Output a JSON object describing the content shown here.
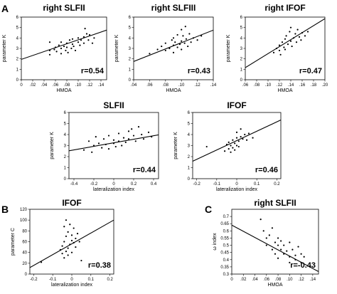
{
  "panel_letters": {
    "A": "A",
    "B": "B",
    "C": "C"
  },
  "chart_data": [
    {
      "id": "a1",
      "type": "scatter",
      "title": "right SLFII",
      "xlabel": "HMOA",
      "ylabel": "parameter K",
      "xlim": [
        0,
        0.15
      ],
      "ylim": [
        0,
        6
      ],
      "xticks": [
        0,
        0.02,
        0.04,
        0.06,
        0.08,
        0.1,
        0.12,
        0.14
      ],
      "xtick_labels": [
        "0",
        ".02",
        ".04",
        ".06",
        ".08",
        ".10",
        ".12",
        ".14"
      ],
      "yticks": [
        0,
        1,
        2,
        3,
        4,
        5,
        6
      ],
      "ytick_labels": [
        "0",
        "1",
        "2",
        "3",
        "4",
        "5",
        "6"
      ],
      "fit": {
        "intercept": 1.95,
        "slope": 18.7
      },
      "annotation": "r=0.54",
      "points": [
        [
          0.05,
          2.4
        ],
        [
          0.05,
          2.8
        ],
        [
          0.05,
          3.6
        ],
        [
          0.058,
          2.9
        ],
        [
          0.06,
          3.1
        ],
        [
          0.062,
          2.7
        ],
        [
          0.066,
          3.3
        ],
        [
          0.07,
          3.0
        ],
        [
          0.07,
          2.5
        ],
        [
          0.07,
          3.6
        ],
        [
          0.075,
          3.2
        ],
        [
          0.078,
          2.8
        ],
        [
          0.08,
          3.5
        ],
        [
          0.08,
          3.1
        ],
        [
          0.082,
          2.6
        ],
        [
          0.085,
          3.8
        ],
        [
          0.088,
          3.0
        ],
        [
          0.09,
          3.4
        ],
        [
          0.09,
          3.9
        ],
        [
          0.092,
          3.2
        ],
        [
          0.095,
          2.8
        ],
        [
          0.1,
          3.6
        ],
        [
          0.1,
          4.0
        ],
        [
          0.103,
          3.3
        ],
        [
          0.105,
          3.8
        ],
        [
          0.11,
          4.1
        ],
        [
          0.11,
          3.5
        ],
        [
          0.112,
          4.9
        ],
        [
          0.115,
          4.4
        ],
        [
          0.118,
          3.8
        ],
        [
          0.12,
          4.3
        ],
        [
          0.125,
          3.5
        ],
        [
          0.128,
          4.0
        ]
      ]
    },
    {
      "id": "a2",
      "type": "scatter",
      "title": "right SLFIII",
      "xlabel": "HMOA",
      "ylabel": "parameter K",
      "xlim": [
        0.04,
        0.14
      ],
      "ylim": [
        0,
        6
      ],
      "xticks": [
        0.04,
        0.06,
        0.08,
        0.1,
        0.12,
        0.14
      ],
      "xtick_labels": [
        ".04",
        ".06",
        ".08",
        ".10",
        ".12",
        ".14"
      ],
      "yticks": [
        0,
        1,
        2,
        3,
        4,
        5,
        6
      ],
      "ytick_labels": [
        "0",
        "1",
        "2",
        "3",
        "4",
        "5",
        "6"
      ],
      "fit": {
        "intercept": 0.55,
        "slope": 30
      },
      "annotation": "r=0.43",
      "points": [
        [
          0.06,
          2.5
        ],
        [
          0.07,
          2.9
        ],
        [
          0.075,
          3.2
        ],
        [
          0.08,
          2.8
        ],
        [
          0.08,
          3.5
        ],
        [
          0.085,
          3.0
        ],
        [
          0.088,
          3.8
        ],
        [
          0.09,
          2.6
        ],
        [
          0.09,
          3.3
        ],
        [
          0.09,
          4.0
        ],
        [
          0.092,
          3.6
        ],
        [
          0.095,
          3.1
        ],
        [
          0.095,
          4.3
        ],
        [
          0.098,
          3.4
        ],
        [
          0.1,
          2.9
        ],
        [
          0.1,
          3.7
        ],
        [
          0.1,
          4.8
        ],
        [
          0.102,
          4.2
        ],
        [
          0.104,
          3.5
        ],
        [
          0.105,
          5.1
        ],
        [
          0.106,
          3.9
        ],
        [
          0.108,
          3.2
        ],
        [
          0.11,
          4.4
        ],
        [
          0.112,
          3.6
        ],
        [
          0.115,
          4.0
        ],
        [
          0.12,
          3.8
        ],
        [
          0.125,
          4.2
        ]
      ]
    },
    {
      "id": "a3",
      "type": "scatter",
      "title": "right IFOF",
      "xlabel": "HMOA",
      "ylabel": "parameter K",
      "xlim": [
        0.06,
        0.2
      ],
      "ylim": [
        0,
        6
      ],
      "xticks": [
        0.06,
        0.08,
        0.1,
        0.12,
        0.14,
        0.16,
        0.18,
        0.2
      ],
      "xtick_labels": [
        ".06",
        ".08",
        ".10",
        ".12",
        ".14",
        ".16",
        ".18",
        ".20"
      ],
      "yticks": [
        0,
        1,
        2,
        3,
        4,
        5,
        6
      ],
      "ytick_labels": [
        "0",
        "1",
        "2",
        "3",
        "4",
        "5",
        "6"
      ],
      "fit": {
        "intercept": -0.85,
        "slope": 33.5
      },
      "annotation": "r=0.47",
      "points": [
        [
          0.11,
          2.6
        ],
        [
          0.115,
          3.0
        ],
        [
          0.12,
          2.8
        ],
        [
          0.12,
          3.3
        ],
        [
          0.122,
          2.4
        ],
        [
          0.125,
          3.6
        ],
        [
          0.128,
          3.1
        ],
        [
          0.13,
          3.9
        ],
        [
          0.13,
          2.9
        ],
        [
          0.132,
          4.2
        ],
        [
          0.135,
          3.4
        ],
        [
          0.138,
          4.6
        ],
        [
          0.14,
          3.7
        ],
        [
          0.14,
          5.0
        ],
        [
          0.142,
          3.2
        ],
        [
          0.145,
          4.0
        ],
        [
          0.148,
          4.4
        ],
        [
          0.15,
          3.6
        ],
        [
          0.152,
          4.8
        ],
        [
          0.155,
          4.1
        ],
        [
          0.158,
          3.8
        ],
        [
          0.16,
          4.5
        ],
        [
          0.165,
          4.2
        ],
        [
          0.17,
          4.6
        ]
      ]
    },
    {
      "id": "a4",
      "type": "scatter",
      "title": "SLFII",
      "xlabel": "lateralization index",
      "ylabel": "parameter K",
      "xlim": [
        -0.45,
        0.45
      ],
      "ylim": [
        0,
        6
      ],
      "xticks": [
        -0.4,
        -0.2,
        0,
        0.2,
        0.4
      ],
      "xtick_labels": [
        "-0.4",
        "-0.2",
        "0",
        "0.2",
        "0.4"
      ],
      "yticks": [
        0,
        1,
        2,
        3,
        4,
        5,
        6
      ],
      "ytick_labels": [
        "0",
        "1",
        "2",
        "3",
        "4",
        "5",
        "6"
      ],
      "fit": {
        "intercept": 3.25,
        "slope": 1.6
      },
      "annotation": "r=0.44",
      "points": [
        [
          -0.3,
          2.6
        ],
        [
          -0.25,
          3.4
        ],
        [
          -0.22,
          2.4
        ],
        [
          -0.2,
          3.0
        ],
        [
          -0.18,
          3.8
        ],
        [
          -0.15,
          3.2
        ],
        [
          -0.12,
          2.8
        ],
        [
          -0.1,
          3.6
        ],
        [
          -0.08,
          3.1
        ],
        [
          -0.05,
          3.9
        ],
        [
          -0.05,
          2.7
        ],
        [
          0.0,
          3.5
        ],
        [
          0.0,
          3.2
        ],
        [
          0.02,
          2.9
        ],
        [
          0.05,
          3.4
        ],
        [
          0.05,
          4.1
        ],
        [
          0.08,
          3.0
        ],
        [
          0.1,
          3.7
        ],
        [
          0.12,
          3.3
        ],
        [
          0.15,
          4.3
        ],
        [
          0.15,
          3.6
        ],
        [
          0.18,
          4.5
        ],
        [
          0.2,
          3.9
        ],
        [
          0.22,
          3.4
        ],
        [
          0.25,
          4.7
        ],
        [
          0.28,
          4.0
        ],
        [
          0.3,
          3.6
        ],
        [
          0.35,
          4.2
        ],
        [
          0.38,
          3.8
        ]
      ]
    },
    {
      "id": "a5",
      "type": "scatter",
      "title": "IFOF",
      "xlabel": "lateralization index",
      "ylabel": "parameter K",
      "xlim": [
        -0.22,
        0.22
      ],
      "ylim": [
        0,
        6
      ],
      "xticks": [
        -0.2,
        -0.1,
        0,
        0.1,
        0.2
      ],
      "xtick_labels": [
        "-0.2",
        "-0.1",
        "0",
        "0.1",
        "0.2"
      ],
      "yticks": [
        0,
        1,
        2,
        3,
        4,
        5,
        6
      ],
      "ytick_labels": [
        "0",
        "1",
        "2",
        "3",
        "4",
        "5",
        "6"
      ],
      "fit": {
        "intercept": 3.45,
        "slope": 8.5
      },
      "annotation": "r=0.46",
      "points": [
        [
          -0.15,
          2.9
        ],
        [
          -0.06,
          2.5
        ],
        [
          -0.05,
          3.1
        ],
        [
          -0.04,
          2.7
        ],
        [
          -0.04,
          3.3
        ],
        [
          -0.03,
          2.4
        ],
        [
          -0.03,
          3.0
        ],
        [
          -0.02,
          2.8
        ],
        [
          -0.02,
          3.5
        ],
        [
          -0.01,
          3.2
        ],
        [
          -0.01,
          2.6
        ],
        [
          0.0,
          3.7
        ],
        [
          0.0,
          3.0
        ],
        [
          0.0,
          4.2
        ],
        [
          0.01,
          3.4
        ],
        [
          0.01,
          2.9
        ],
        [
          0.02,
          3.8
        ],
        [
          0.02,
          4.5
        ],
        [
          0.03,
          3.6
        ],
        [
          0.04,
          4.0
        ],
        [
          0.05,
          3.5
        ],
        [
          0.06,
          4.1
        ],
        [
          0.08,
          3.7
        ]
      ]
    },
    {
      "id": "b",
      "type": "scatter",
      "title": "IFOF",
      "xlabel": "lateralization index",
      "ylabel": "parameter C",
      "xlim": [
        -0.22,
        0.22
      ],
      "ylim": [
        0,
        120
      ],
      "xticks": [
        -0.2,
        -0.1,
        0,
        0.1,
        0.2
      ],
      "xtick_labels": [
        "-0.2",
        "-0.1",
        "0",
        "0.1",
        "0.2"
      ],
      "yticks": [
        0,
        20,
        40,
        60,
        80,
        100,
        120
      ],
      "ytick_labels": [
        "0",
        "20",
        "40",
        "60",
        "80",
        "100",
        "120"
      ],
      "fit": {
        "intercept": 56,
        "slope": 200
      },
      "annotation": "r=0.38",
      "points": [
        [
          -0.16,
          22
        ],
        [
          -0.06,
          45
        ],
        [
          -0.05,
          38
        ],
        [
          -0.05,
          52
        ],
        [
          -0.04,
          30
        ],
        [
          -0.04,
          60
        ],
        [
          -0.04,
          88
        ],
        [
          -0.03,
          42
        ],
        [
          -0.03,
          70
        ],
        [
          -0.03,
          100
        ],
        [
          -0.02,
          48
        ],
        [
          -0.02,
          78
        ],
        [
          -0.02,
          35
        ],
        [
          -0.01,
          55
        ],
        [
          -0.01,
          92
        ],
        [
          0.0,
          62
        ],
        [
          0.0,
          40
        ],
        [
          0.0,
          72
        ],
        [
          0.01,
          58
        ],
        [
          0.01,
          85
        ],
        [
          0.02,
          66
        ],
        [
          0.02,
          50
        ],
        [
          0.03,
          75
        ],
        [
          0.04,
          60
        ],
        [
          0.05,
          25
        ]
      ]
    },
    {
      "id": "c",
      "type": "scatter",
      "title": "right SLFII",
      "xlabel": "HMOA",
      "ylabel": "ω index",
      "xlim": [
        0,
        0.15
      ],
      "ylim": [
        0.3,
        0.75
      ],
      "xticks": [
        0,
        0.02,
        0.04,
        0.06,
        0.08,
        0.1,
        0.12,
        0.14
      ],
      "xtick_labels": [
        "0",
        ".02",
        ".04",
        ".06",
        ".08",
        ".10",
        ".12",
        ".14"
      ],
      "yticks": [
        0.3,
        0.35,
        0.4,
        0.45,
        0.5,
        0.55,
        0.6,
        0.65,
        0.7
      ],
      "ytick_labels": [
        "0.3",
        "0.35",
        "0.4",
        "0.45",
        "0.5",
        "0.55",
        "0.6",
        "0.65",
        "0.7"
      ],
      "fit": {
        "intercept": 0.64,
        "slope": -2.15
      },
      "annotation": "r=-0.43",
      "points": [
        [
          0.05,
          0.68
        ],
        [
          0.055,
          0.6
        ],
        [
          0.06,
          0.55
        ],
        [
          0.06,
          0.5
        ],
        [
          0.065,
          0.57
        ],
        [
          0.07,
          0.62
        ],
        [
          0.07,
          0.47
        ],
        [
          0.075,
          0.52
        ],
        [
          0.075,
          0.44
        ],
        [
          0.08,
          0.5
        ],
        [
          0.08,
          0.55
        ],
        [
          0.08,
          0.41
        ],
        [
          0.085,
          0.47
        ],
        [
          0.085,
          0.53
        ],
        [
          0.09,
          0.44
        ],
        [
          0.09,
          0.5
        ],
        [
          0.095,
          0.46
        ],
        [
          0.1,
          0.42
        ],
        [
          0.1,
          0.52
        ],
        [
          0.1,
          0.38
        ],
        [
          0.105,
          0.47
        ],
        [
          0.11,
          0.43
        ],
        [
          0.11,
          0.4
        ],
        [
          0.115,
          0.49
        ],
        [
          0.12,
          0.44
        ],
        [
          0.12,
          0.38
        ],
        [
          0.125,
          0.42
        ]
      ]
    }
  ]
}
